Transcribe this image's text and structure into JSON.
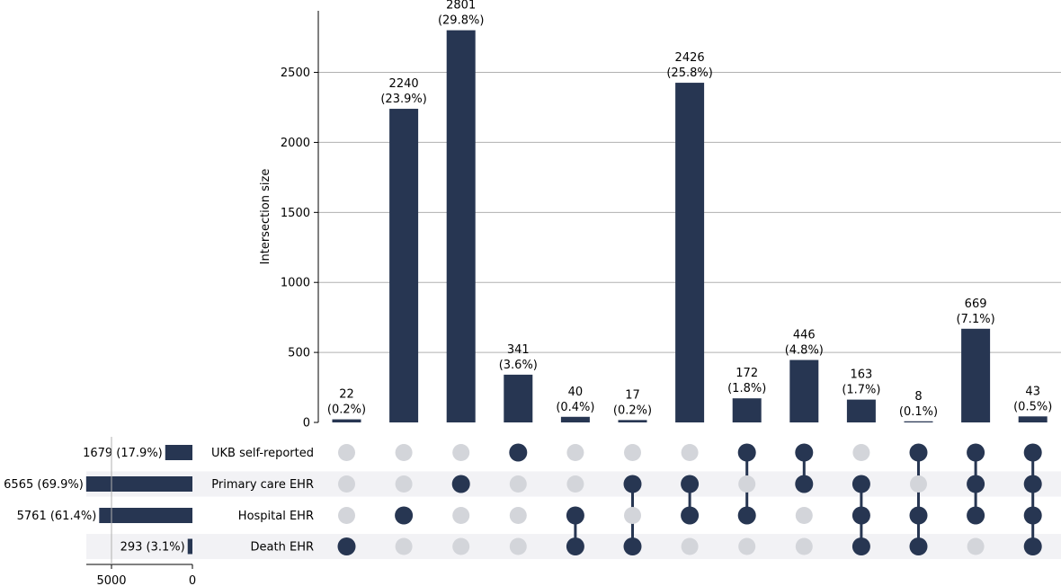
{
  "chart_data": {
    "type": "upset",
    "ylabel": "Intersection size",
    "ylim": [
      0,
      2940
    ],
    "yticks": [
      0,
      500,
      1000,
      1500,
      2000,
      2500
    ],
    "grid": true,
    "sets": [
      {
        "name": "UKB self-reported",
        "size": 1679,
        "label": "1679 (17.9%)"
      },
      {
        "name": "Primary care EHR",
        "size": 6565,
        "label": "6565 (69.9%)"
      },
      {
        "name": "Hospital EHR",
        "size": 5761,
        "label": "5761 (61.4%)"
      },
      {
        "name": "Death EHR",
        "size": 293,
        "label": "293 (3.1%)"
      }
    ],
    "set_size_axis": {
      "ticks": [
        5000,
        0
      ],
      "max": 6565
    },
    "intersections": [
      {
        "value": 22,
        "count": "22",
        "pct": "(0.2%)",
        "members": [
          3
        ]
      },
      {
        "value": 2240,
        "count": "2240",
        "pct": "(23.9%)",
        "members": [
          2
        ]
      },
      {
        "value": 2801,
        "count": "2801",
        "pct": "(29.8%)",
        "members": [
          1
        ]
      },
      {
        "value": 341,
        "count": "341",
        "pct": "(3.6%)",
        "members": [
          0
        ]
      },
      {
        "value": 40,
        "count": "40",
        "pct": "(0.4%)",
        "members": [
          2,
          3
        ]
      },
      {
        "value": 17,
        "count": "17",
        "pct": "(0.2%)",
        "members": [
          1,
          3
        ]
      },
      {
        "value": 2426,
        "count": "2426",
        "pct": "(25.8%)",
        "members": [
          1,
          2
        ]
      },
      {
        "value": 172,
        "count": "172",
        "pct": "(1.8%)",
        "members": [
          0,
          2
        ]
      },
      {
        "value": 446,
        "count": "446",
        "pct": "(4.8%)",
        "members": [
          0,
          1
        ]
      },
      {
        "value": 163,
        "count": "163",
        "pct": "(1.7%)",
        "members": [
          1,
          2,
          3
        ]
      },
      {
        "value": 8,
        "count": "8",
        "pct": "(0.1%)",
        "members": [
          0,
          2,
          3
        ]
      },
      {
        "value": 669,
        "count": "669",
        "pct": "(7.1%)",
        "members": [
          0,
          1,
          2
        ]
      },
      {
        "value": 43,
        "count": "43",
        "pct": "(0.5%)",
        "members": [
          0,
          1,
          2,
          3
        ]
      }
    ],
    "colors": {
      "bar": "#273652",
      "dot_inactive": "#d3d5da",
      "stripe": "#f2f2f5",
      "grid": "#b0b0b0"
    }
  }
}
